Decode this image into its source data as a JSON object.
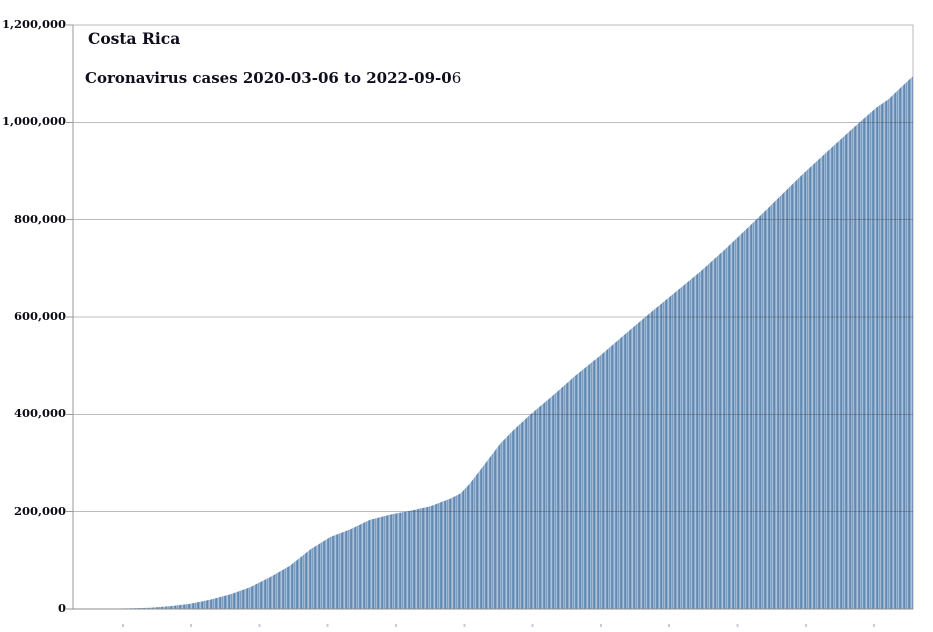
{
  "header": {
    "country": "Costa Rica",
    "subtitle_bold": "Coronavirus cases 2020-03-06 to 2022-09-0",
    "subtitle_light_suffix": "6",
    "subtitle_full": "Coronavirus cases 2020-03-06 to 2022-09-06"
  },
  "chart_data": {
    "type": "bar",
    "title": "Costa Rica",
    "subtitle": "Coronavirus cases 2020-03-06 to 2022-09-06",
    "xlabel": "",
    "ylabel": "",
    "x_start_date": "2020-03-06",
    "x_end_date": "2022-09-06",
    "ylim": [
      0,
      1200000
    ],
    "grid": true,
    "legend": false,
    "y_ticks": [
      {
        "value": 0,
        "label": "0"
      },
      {
        "value": 200000,
        "label": "200,000"
      },
      {
        "value": 400000,
        "label": "400,000"
      },
      {
        "value": 600000,
        "label": "600,000"
      },
      {
        "value": 800000,
        "label": "800,000"
      },
      {
        "value": 1000000,
        "label": "1,000,000"
      },
      {
        "value": 1200000,
        "label": "1,200,000"
      }
    ],
    "x_tick_count": 12,
    "samples": [
      {
        "date": "2020-03-06",
        "value": 0
      },
      {
        "date": "2020-04-04",
        "value": 600
      },
      {
        "date": "2020-05-02",
        "value": 1300
      },
      {
        "date": "2020-05-29",
        "value": 2600
      },
      {
        "date": "2020-06-20",
        "value": 6000
      },
      {
        "date": "2020-07-11",
        "value": 10500
      },
      {
        "date": "2020-08-02",
        "value": 19000
      },
      {
        "date": "2020-08-24",
        "value": 30000
      },
      {
        "date": "2020-09-15",
        "value": 45000
      },
      {
        "date": "2020-10-07",
        "value": 66000
      },
      {
        "date": "2020-10-28",
        "value": 89000
      },
      {
        "date": "2020-11-19",
        "value": 122000
      },
      {
        "date": "2020-12-11",
        "value": 148000
      },
      {
        "date": "2021-01-02",
        "value": 164000
      },
      {
        "date": "2021-01-23",
        "value": 183000
      },
      {
        "date": "2021-02-14",
        "value": 194000
      },
      {
        "date": "2021-03-08",
        "value": 202000
      },
      {
        "date": "2021-03-30",
        "value": 211000
      },
      {
        "date": "2021-04-21",
        "value": 227000
      },
      {
        "date": "2021-05-02",
        "value": 238000
      },
      {
        "date": "2021-05-12",
        "value": 258000
      },
      {
        "date": "2021-05-29",
        "value": 300000
      },
      {
        "date": "2021-06-14",
        "value": 340000
      },
      {
        "date": "2021-06-28",
        "value": 367000
      },
      {
        "date": "2021-07-17",
        "value": 400000
      },
      {
        "date": "2021-08-08",
        "value": 435000
      },
      {
        "date": "2021-09-04",
        "value": 480000
      },
      {
        "date": "2021-10-01",
        "value": 521000
      },
      {
        "date": "2021-10-28",
        "value": 565000
      },
      {
        "date": "2021-11-25",
        "value": 610000
      },
      {
        "date": "2021-12-22",
        "value": 652000
      },
      {
        "date": "2022-01-18",
        "value": 694000
      },
      {
        "date": "2022-02-14",
        "value": 740000
      },
      {
        "date": "2022-03-14",
        "value": 790000
      },
      {
        "date": "2022-04-10",
        "value": 840000
      },
      {
        "date": "2022-05-07",
        "value": 890000
      },
      {
        "date": "2022-06-03",
        "value": 937000
      },
      {
        "date": "2022-07-01",
        "value": 985000
      },
      {
        "date": "2022-07-28",
        "value": 1030000
      },
      {
        "date": "2022-08-10",
        "value": 1047000
      },
      {
        "date": "2022-08-24",
        "value": 1072000
      },
      {
        "date": "2022-09-06",
        "value": 1095000
      }
    ],
    "colors": {
      "bar_stripes": [
        "#6089b3",
        "#8fadcd",
        "#adc2da",
        "#7496bb",
        "#6288b2",
        "#9ab5d2",
        "#7d9dc1",
        "#a5bcd7",
        "#6e92b9"
      ],
      "gridline_over_white": "#ababab",
      "plot_border": "#bbbbbb",
      "axis": "#8c8c8c",
      "title_text": "#0e0e1c"
    }
  }
}
